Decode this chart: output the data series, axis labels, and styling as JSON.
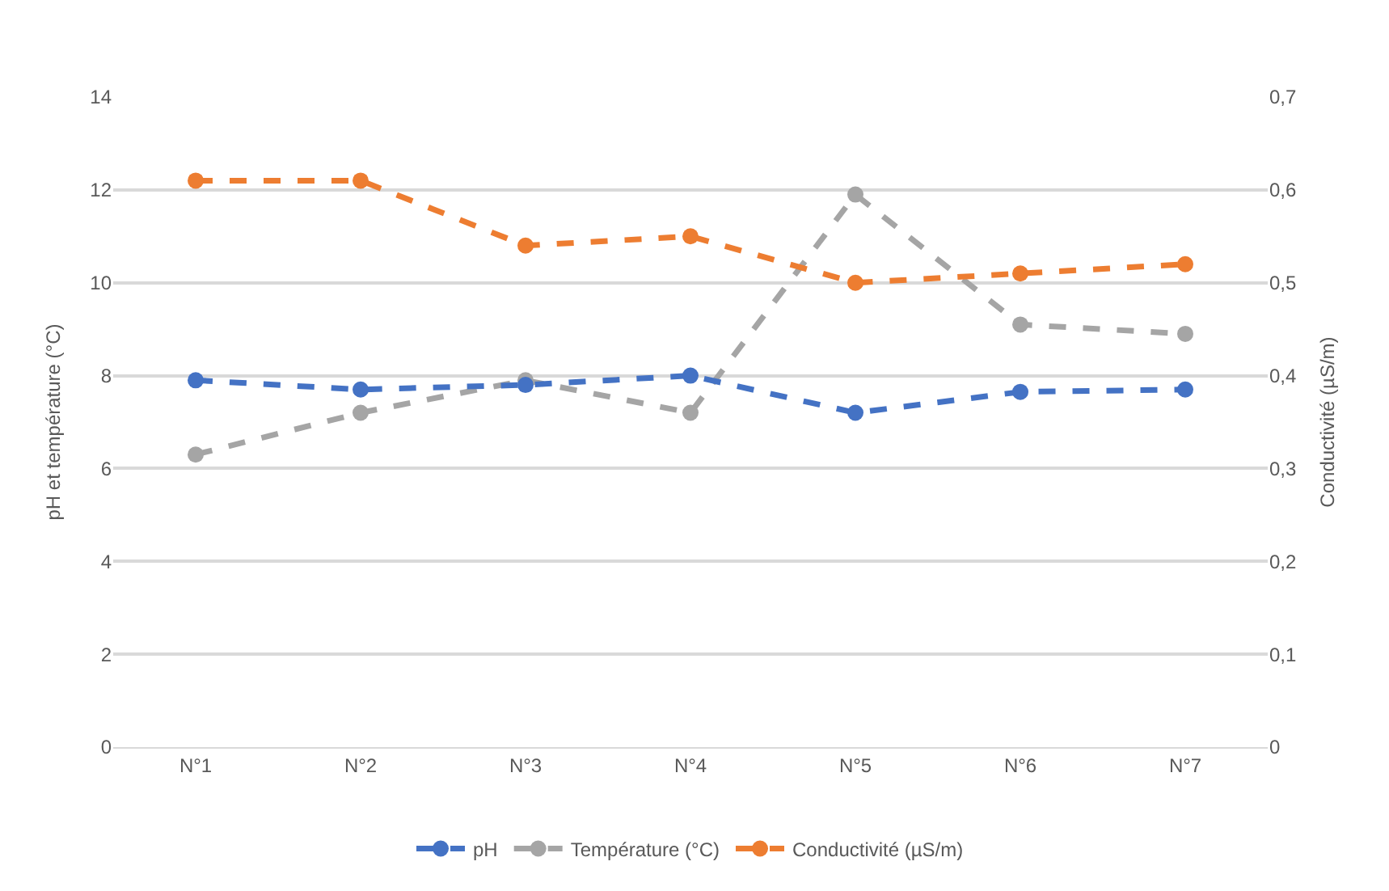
{
  "chart_data": {
    "type": "line",
    "ylabel": "pH et température (°C)",
    "y2label": "Conductivité (µS/m)",
    "categories": [
      "N°1",
      "N°2",
      "N°3",
      "N°4",
      "N°5",
      "N°6",
      "N°7"
    ],
    "series": [
      {
        "name": "pH",
        "color": "#4472c4",
        "values": [
          7.9,
          7.7,
          7.8,
          8.0,
          7.2,
          7.65,
          7.7
        ]
      },
      {
        "name": "Température (°C)",
        "color": "#a5a5a5",
        "values": [
          6.3,
          7.2,
          7.9,
          7.2,
          11.9,
          9.1,
          8.9
        ]
      },
      {
        "name": "Conductivité (µS/m)",
        "color": "#ed7d31",
        "axis": "y2",
        "values": [
          0.61,
          0.61,
          0.54,
          0.55,
          0.5,
          0.51,
          0.52
        ]
      }
    ],
    "ylim": [
      0,
      14
    ],
    "yticks": [
      0,
      2,
      4,
      6,
      8,
      10,
      12,
      14
    ],
    "y2lim": [
      0,
      0.7
    ],
    "y2ticks": [
      0,
      {
        "value": 0.1,
        "label": "0,1"
      },
      {
        "value": 0.2,
        "label": "0,2"
      },
      {
        "value": 0.3,
        "label": "0,3"
      },
      {
        "value": 0.4,
        "label": "0,4"
      },
      {
        "value": 0.5,
        "label": "0,5"
      },
      {
        "value": 0.6,
        "label": "0,6"
      },
      {
        "value": 0.7,
        "label": "0,7"
      }
    ],
    "grid": "y",
    "legend": "bottom",
    "marker": "circle",
    "line_style": "dashed"
  }
}
